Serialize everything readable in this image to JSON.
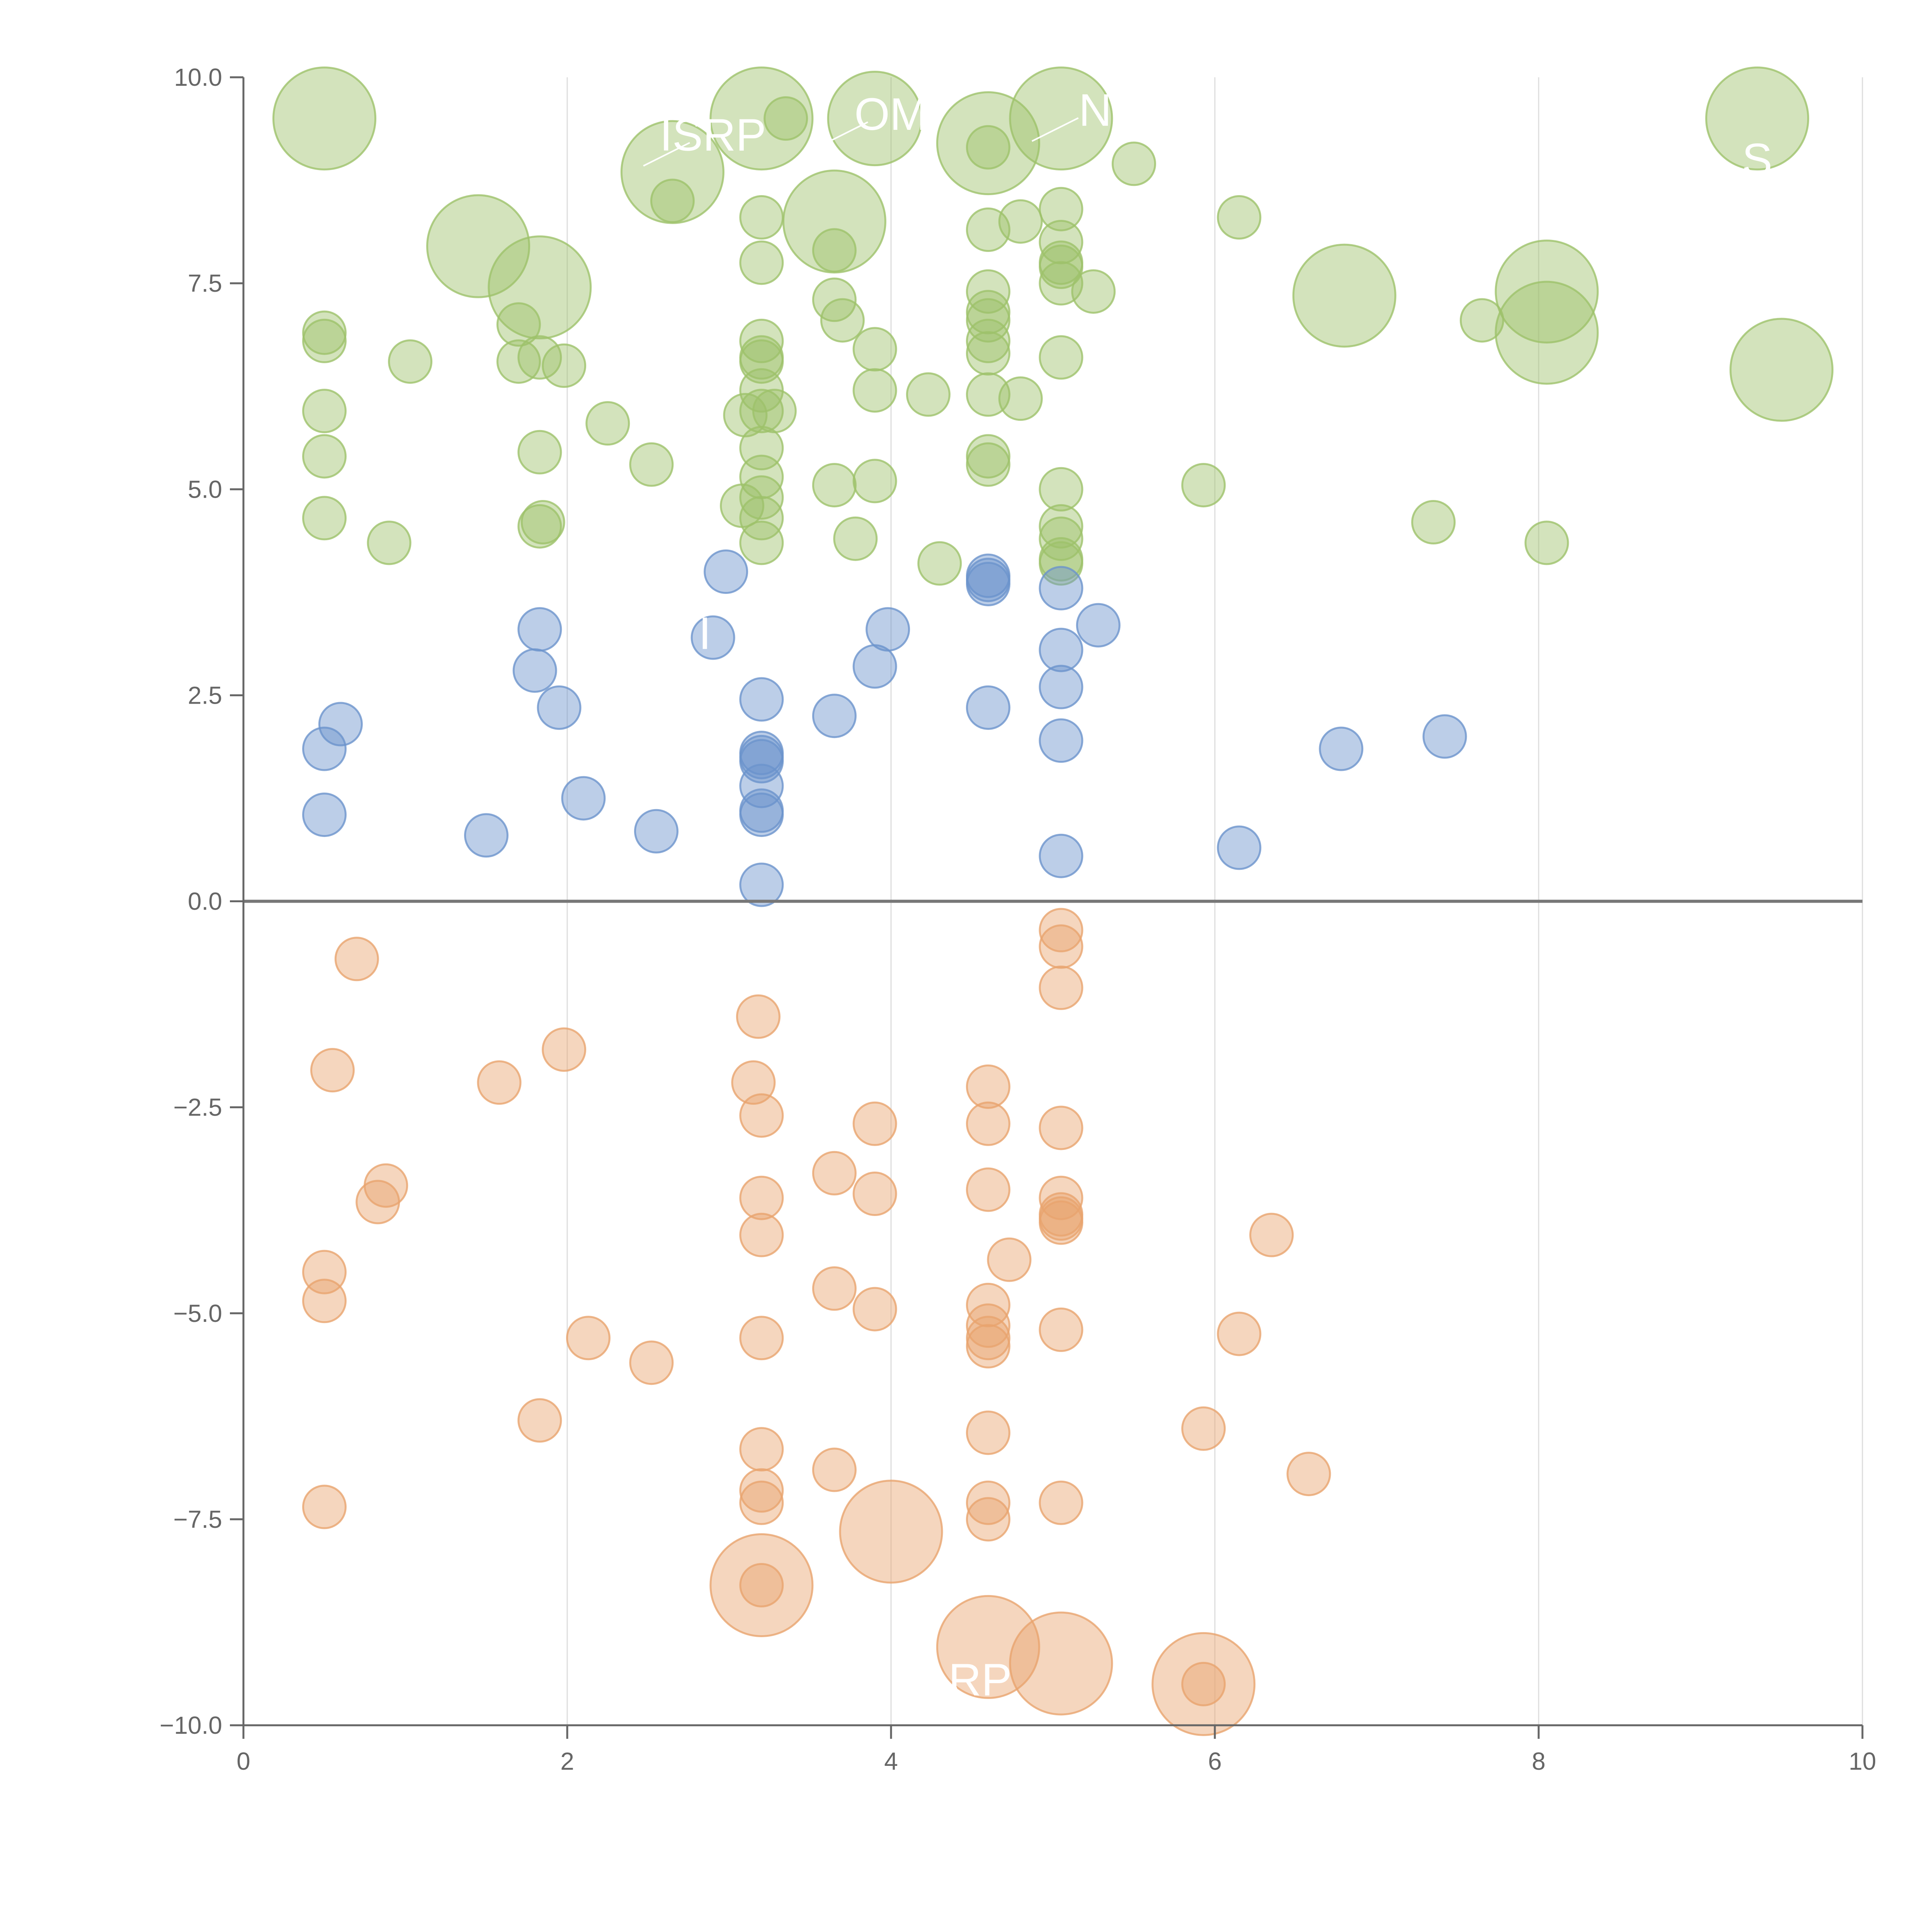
{
  "chart_data": {
    "type": "scatter",
    "title": "",
    "xlabel": "",
    "ylabel": "",
    "xlim": [
      0,
      10
    ],
    "ylim": [
      -10,
      10
    ],
    "x_ticks": [
      0,
      2,
      4,
      6,
      8,
      10
    ],
    "y_ticks": [
      -10.0,
      -7.5,
      -5.0,
      -2.5,
      0.0,
      2.5,
      5.0,
      7.5,
      10.0
    ],
    "x_tick_labels": [
      "0",
      "2",
      "4",
      "6",
      "8",
      "10"
    ],
    "y_tick_labels": [
      "−10.0",
      "−7.5",
      "−5.0",
      "−2.5",
      "0.0",
      "2.5",
      "5.0",
      "7.5",
      "10.0"
    ],
    "vertical_grid": true,
    "zero_line": 0,
    "legend": "none",
    "colors": {
      "green": "#9dc26a",
      "blue": "#6b93cc",
      "orange": "#e8a46e",
      "axis": "#666666",
      "grid": "#dddddd",
      "zero_line": "#777777"
    },
    "callout_labels": [
      {
        "text": "ISRP",
        "x": 2.9,
        "y": 9.3
      },
      {
        "text": "OM",
        "x": 4.0,
        "y": 9.55
      },
      {
        "text": "NI",
        "x": 5.3,
        "y": 9.6
      },
      {
        "text": "S",
        "x": 9.35,
        "y": 9.0
      },
      {
        "text": "I",
        "x": 2.85,
        "y": 3.25
      },
      {
        "text": "RP",
        "x": 4.55,
        "y": -9.45
      }
    ],
    "series": [
      {
        "name": "upper-green",
        "color": "#9dc26a",
        "points": [
          {
            "x": 0.5,
            "y": 9.5,
            "r": 2.4
          },
          {
            "x": 3.2,
            "y": 9.5,
            "r": 2.4
          },
          {
            "x": 3.35,
            "y": 9.5,
            "r": 1
          },
          {
            "x": 3.9,
            "y": 9.5,
            "r": 2.2
          },
          {
            "x": 5.05,
            "y": 9.5,
            "r": 2.4
          },
          {
            "x": 9.35,
            "y": 9.5,
            "r": 2.4
          },
          {
            "x": 4.6,
            "y": 9.2,
            "r": 2.4
          },
          {
            "x": 4.6,
            "y": 9.15,
            "r": 1
          },
          {
            "x": 2.65,
            "y": 8.85,
            "r": 2.4
          },
          {
            "x": 5.5,
            "y": 8.95,
            "r": 1
          },
          {
            "x": 2.65,
            "y": 8.5,
            "r": 1
          },
          {
            "x": 3.2,
            "y": 8.3,
            "r": 1
          },
          {
            "x": 3.65,
            "y": 8.25,
            "r": 2.4
          },
          {
            "x": 4.6,
            "y": 8.15,
            "r": 1
          },
          {
            "x": 4.8,
            "y": 8.25,
            "r": 1
          },
          {
            "x": 5.05,
            "y": 8.4,
            "r": 1
          },
          {
            "x": 6.15,
            "y": 8.3,
            "r": 1
          },
          {
            "x": 1.45,
            "y": 7.95,
            "r": 2.4
          },
          {
            "x": 3.65,
            "y": 7.9,
            "r": 1
          },
          {
            "x": 5.05,
            "y": 8.0,
            "r": 1
          },
          {
            "x": 3.2,
            "y": 7.75,
            "r": 1
          },
          {
            "x": 5.05,
            "y": 7.75,
            "r": 1
          },
          {
            "x": 5.05,
            "y": 7.7,
            "r": 1
          },
          {
            "x": 1.83,
            "y": 7.45,
            "r": 2.4
          },
          {
            "x": 4.6,
            "y": 7.4,
            "r": 1
          },
          {
            "x": 5.05,
            "y": 7.5,
            "r": 1
          },
          {
            "x": 5.25,
            "y": 7.4,
            "r": 1
          },
          {
            "x": 6.8,
            "y": 7.35,
            "r": 2.4
          },
          {
            "x": 8.05,
            "y": 7.4,
            "r": 2.4
          },
          {
            "x": 3.65,
            "y": 7.3,
            "r": 1
          },
          {
            "x": 3.7,
            "y": 7.05,
            "r": 1
          },
          {
            "x": 4.6,
            "y": 7.15,
            "r": 1
          },
          {
            "x": 4.6,
            "y": 7.05,
            "r": 1
          },
          {
            "x": 7.65,
            "y": 7.05,
            "r": 1
          },
          {
            "x": 1.7,
            "y": 7.0,
            "r": 1
          },
          {
            "x": 0.5,
            "y": 6.9,
            "r": 1
          },
          {
            "x": 0.5,
            "y": 6.8,
            "r": 1
          },
          {
            "x": 3.2,
            "y": 6.8,
            "r": 1
          },
          {
            "x": 3.9,
            "y": 6.7,
            "r": 1
          },
          {
            "x": 4.6,
            "y": 6.8,
            "r": 1
          },
          {
            "x": 4.6,
            "y": 6.65,
            "r": 1
          },
          {
            "x": 8.05,
            "y": 6.9,
            "r": 2.4
          },
          {
            "x": 1.03,
            "y": 6.55,
            "r": 1
          },
          {
            "x": 1.7,
            "y": 6.55,
            "r": 1
          },
          {
            "x": 1.83,
            "y": 6.6,
            "r": 1
          },
          {
            "x": 1.98,
            "y": 6.5,
            "r": 1
          },
          {
            "x": 3.2,
            "y": 6.6,
            "r": 1
          },
          {
            "x": 3.2,
            "y": 6.55,
            "r": 1
          },
          {
            "x": 5.05,
            "y": 6.6,
            "r": 1
          },
          {
            "x": 9.5,
            "y": 6.45,
            "r": 2.4
          },
          {
            "x": 3.2,
            "y": 6.2,
            "r": 1
          },
          {
            "x": 3.9,
            "y": 6.2,
            "r": 1
          },
          {
            "x": 4.23,
            "y": 6.15,
            "r": 1
          },
          {
            "x": 4.6,
            "y": 6.15,
            "r": 1
          },
          {
            "x": 4.8,
            "y": 6.1,
            "r": 1
          },
          {
            "x": 0.5,
            "y": 5.95,
            "r": 1
          },
          {
            "x": 3.1,
            "y": 5.9,
            "r": 1
          },
          {
            "x": 3.2,
            "y": 5.95,
            "r": 1
          },
          {
            "x": 3.28,
            "y": 5.95,
            "r": 1
          },
          {
            "x": 2.25,
            "y": 5.8,
            "r": 1
          },
          {
            "x": 3.2,
            "y": 5.5,
            "r": 1
          },
          {
            "x": 0.5,
            "y": 5.4,
            "r": 1
          },
          {
            "x": 1.83,
            "y": 5.45,
            "r": 1
          },
          {
            "x": 2.52,
            "y": 5.3,
            "r": 1
          },
          {
            "x": 4.6,
            "y": 5.4,
            "r": 1
          },
          {
            "x": 4.6,
            "y": 5.3,
            "r": 1
          },
          {
            "x": 3.2,
            "y": 5.15,
            "r": 1
          },
          {
            "x": 3.65,
            "y": 5.05,
            "r": 1
          },
          {
            "x": 3.9,
            "y": 5.1,
            "r": 1
          },
          {
            "x": 5.05,
            "y": 5.0,
            "r": 1
          },
          {
            "x": 5.93,
            "y": 5.05,
            "r": 1
          },
          {
            "x": 3.08,
            "y": 4.8,
            "r": 1
          },
          {
            "x": 3.2,
            "y": 4.9,
            "r": 1
          },
          {
            "x": 0.5,
            "y": 4.65,
            "r": 1
          },
          {
            "x": 1.85,
            "y": 4.6,
            "r": 1
          },
          {
            "x": 1.83,
            "y": 4.55,
            "r": 1
          },
          {
            "x": 3.2,
            "y": 4.65,
            "r": 1
          },
          {
            "x": 5.05,
            "y": 4.55,
            "r": 1
          },
          {
            "x": 7.35,
            "y": 4.6,
            "r": 1
          },
          {
            "x": 0.9,
            "y": 4.35,
            "r": 1
          },
          {
            "x": 3.2,
            "y": 4.35,
            "r": 1
          },
          {
            "x": 3.78,
            "y": 4.4,
            "r": 1
          },
          {
            "x": 5.05,
            "y": 4.4,
            "r": 1
          },
          {
            "x": 8.05,
            "y": 4.35,
            "r": 1
          },
          {
            "x": 4.3,
            "y": 4.1,
            "r": 1
          },
          {
            "x": 5.05,
            "y": 4.15,
            "r": 1
          },
          {
            "x": 5.05,
            "y": 4.1,
            "r": 1
          }
        ]
      },
      {
        "name": "middle-blue",
        "color": "#6b93cc",
        "points": [
          {
            "x": 2.98,
            "y": 4.0,
            "r": 1
          },
          {
            "x": 4.6,
            "y": 3.95,
            "r": 1
          },
          {
            "x": 4.6,
            "y": 3.9,
            "r": 1
          },
          {
            "x": 4.6,
            "y": 3.85,
            "r": 1
          },
          {
            "x": 5.05,
            "y": 3.8,
            "r": 1
          },
          {
            "x": 1.83,
            "y": 3.3,
            "r": 1
          },
          {
            "x": 2.9,
            "y": 3.2,
            "r": 1
          },
          {
            "x": 3.98,
            "y": 3.3,
            "r": 1
          },
          {
            "x": 5.28,
            "y": 3.35,
            "r": 1
          },
          {
            "x": 5.05,
            "y": 3.05,
            "r": 1
          },
          {
            "x": 1.8,
            "y": 2.8,
            "r": 1
          },
          {
            "x": 3.9,
            "y": 2.85,
            "r": 1
          },
          {
            "x": 5.05,
            "y": 2.6,
            "r": 1
          },
          {
            "x": 3.2,
            "y": 2.45,
            "r": 1
          },
          {
            "x": 1.95,
            "y": 2.35,
            "r": 1
          },
          {
            "x": 4.6,
            "y": 2.35,
            "r": 1
          },
          {
            "x": 3.65,
            "y": 2.25,
            "r": 1
          },
          {
            "x": 0.6,
            "y": 2.15,
            "r": 1
          },
          {
            "x": 7.42,
            "y": 2.0,
            "r": 1
          },
          {
            "x": 5.05,
            "y": 1.95,
            "r": 1
          },
          {
            "x": 0.5,
            "y": 1.85,
            "r": 1
          },
          {
            "x": 6.78,
            "y": 1.85,
            "r": 1
          },
          {
            "x": 3.2,
            "y": 1.8,
            "r": 1
          },
          {
            "x": 3.2,
            "y": 1.75,
            "r": 1
          },
          {
            "x": 3.2,
            "y": 1.7,
            "r": 1
          },
          {
            "x": 3.2,
            "y": 1.4,
            "r": 1
          },
          {
            "x": 2.1,
            "y": 1.25,
            "r": 1
          },
          {
            "x": 3.2,
            "y": 1.1,
            "r": 1
          },
          {
            "x": 0.5,
            "y": 1.05,
            "r": 1
          },
          {
            "x": 3.2,
            "y": 1.05,
            "r": 1
          },
          {
            "x": 2.55,
            "y": 0.85,
            "r": 1
          },
          {
            "x": 1.5,
            "y": 0.8,
            "r": 1
          },
          {
            "x": 6.15,
            "y": 0.65,
            "r": 1
          },
          {
            "x": 5.05,
            "y": 0.55,
            "r": 1
          },
          {
            "x": 3.2,
            "y": 0.2,
            "r": 1
          }
        ]
      },
      {
        "name": "lower-orange",
        "color": "#e8a46e",
        "points": [
          {
            "x": 5.05,
            "y": -0.35,
            "r": 1
          },
          {
            "x": 5.05,
            "y": -0.55,
            "r": 1
          },
          {
            "x": 0.7,
            "y": -0.7,
            "r": 1
          },
          {
            "x": 5.05,
            "y": -1.05,
            "r": 1
          },
          {
            "x": 3.18,
            "y": -1.4,
            "r": 1
          },
          {
            "x": 1.98,
            "y": -1.8,
            "r": 1
          },
          {
            "x": 0.55,
            "y": -2.05,
            "r": 1
          },
          {
            "x": 1.58,
            "y": -2.2,
            "r": 1
          },
          {
            "x": 3.15,
            "y": -2.2,
            "r": 1
          },
          {
            "x": 4.6,
            "y": -2.25,
            "r": 1
          },
          {
            "x": 3.2,
            "y": -2.6,
            "r": 1
          },
          {
            "x": 3.9,
            "y": -2.7,
            "r": 1
          },
          {
            "x": 4.6,
            "y": -2.7,
            "r": 1
          },
          {
            "x": 5.05,
            "y": -2.75,
            "r": 1
          },
          {
            "x": 3.65,
            "y": -3.3,
            "r": 1
          },
          {
            "x": 0.88,
            "y": -3.45,
            "r": 1
          },
          {
            "x": 4.6,
            "y": -3.5,
            "r": 1
          },
          {
            "x": 3.9,
            "y": -3.55,
            "r": 1
          },
          {
            "x": 5.05,
            "y": -3.6,
            "r": 1
          },
          {
            "x": 0.83,
            "y": -3.65,
            "r": 1
          },
          {
            "x": 3.2,
            "y": -3.6,
            "r": 1
          },
          {
            "x": 5.05,
            "y": -3.8,
            "r": 1
          },
          {
            "x": 5.05,
            "y": -3.85,
            "r": 1
          },
          {
            "x": 5.05,
            "y": -3.9,
            "r": 1
          },
          {
            "x": 3.2,
            "y": -4.05,
            "r": 1
          },
          {
            "x": 6.35,
            "y": -4.05,
            "r": 1
          },
          {
            "x": 4.73,
            "y": -4.35,
            "r": 1
          },
          {
            "x": 0.5,
            "y": -4.5,
            "r": 1
          },
          {
            "x": 3.65,
            "y": -4.7,
            "r": 1
          },
          {
            "x": 0.5,
            "y": -4.85,
            "r": 1
          },
          {
            "x": 4.6,
            "y": -4.9,
            "r": 1
          },
          {
            "x": 3.9,
            "y": -4.95,
            "r": 1
          },
          {
            "x": 4.6,
            "y": -5.15,
            "r": 1
          },
          {
            "x": 5.05,
            "y": -5.2,
            "r": 1
          },
          {
            "x": 6.15,
            "y": -5.25,
            "r": 1
          },
          {
            "x": 2.13,
            "y": -5.3,
            "r": 1
          },
          {
            "x": 3.2,
            "y": -5.3,
            "r": 1
          },
          {
            "x": 4.6,
            "y": -5.3,
            "r": 1
          },
          {
            "x": 4.6,
            "y": -5.4,
            "r": 1
          },
          {
            "x": 2.52,
            "y": -5.6,
            "r": 1
          },
          {
            "x": 1.83,
            "y": -6.3,
            "r": 1
          },
          {
            "x": 5.93,
            "y": -6.4,
            "r": 1
          },
          {
            "x": 4.6,
            "y": -6.45,
            "r": 1
          },
          {
            "x": 3.2,
            "y": -6.65,
            "r": 1
          },
          {
            "x": 3.65,
            "y": -6.9,
            "r": 1
          },
          {
            "x": 6.58,
            "y": -6.95,
            "r": 1
          },
          {
            "x": 3.2,
            "y": -7.15,
            "r": 1
          },
          {
            "x": 3.2,
            "y": -7.3,
            "r": 1
          },
          {
            "x": 4.6,
            "y": -7.3,
            "r": 1
          },
          {
            "x": 5.05,
            "y": -7.3,
            "r": 1
          },
          {
            "x": 0.5,
            "y": -7.35,
            "r": 1
          },
          {
            "x": 4.6,
            "y": -7.5,
            "r": 1
          },
          {
            "x": 4.0,
            "y": -7.65,
            "r": 2.4
          },
          {
            "x": 3.2,
            "y": -8.3,
            "r": 2.4
          },
          {
            "x": 3.2,
            "y": -8.3,
            "r": 1
          },
          {
            "x": 4.6,
            "y": -9.05,
            "r": 2.4
          },
          {
            "x": 5.05,
            "y": -9.25,
            "r": 2.4
          },
          {
            "x": 5.93,
            "y": -9.5,
            "r": 2.4
          },
          {
            "x": 5.93,
            "y": -9.5,
            "r": 1
          }
        ]
      }
    ]
  }
}
